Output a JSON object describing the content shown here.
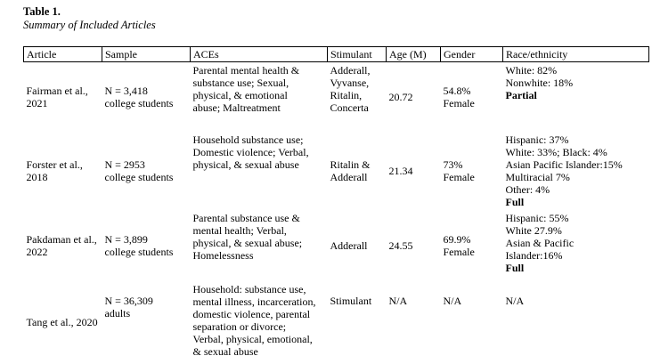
{
  "caption": {
    "title": "Table 1.",
    "subtitle": "Summary of Included Articles"
  },
  "table": {
    "headers": [
      "Article",
      "Sample",
      "ACEs",
      "Stimulant",
      "Age (M)",
      "Gender",
      "Race/ethnicity"
    ],
    "rows": [
      {
        "article": "Fairman et al.,\n2021",
        "sample": "N = 3,418\ncollege students",
        "aces": "Parental mental health &\nsubstance use; Sexual,\nphysical, & emotional\nabuse; Maltreatment",
        "stimulant": "Adderall,\nVyvanse,\nRitalin,\nConcerta",
        "age": "20.72",
        "gender": "54.8%\nFemale",
        "race_text": "White: 82%\nNonwhite: 18%",
        "race_bold": "Partial"
      },
      {
        "article": "Forster et al.,\n2018",
        "sample": "N = 2953\ncollege students",
        "aces": "Household substance use;\nDomestic violence; Verbal,\nphysical, & sexual abuse",
        "stimulant": "Ritalin &\nAdderall",
        "age": "21.34",
        "gender": "73%\nFemale",
        "race_text": "Hispanic: 37%\nWhite: 33%; Black: 4%\nAsian Pacific Islander:15%\nMultiracial 7%\nOther: 4%",
        "race_bold": "Full"
      },
      {
        "article": "Pakdaman et al.,\n2022",
        "sample": "N = 3,899\ncollege students",
        "aces": "Parental substance use &\nmental health; Verbal,\nphysical, & sexual abuse;\nHomelessness",
        "stimulant": "Adderall",
        "age": "24.55",
        "gender": "69.9%\nFemale",
        "race_text": "Hispanic: 55%\nWhite 27.9%\nAsian & Pacific\nIslander:16%",
        "race_bold": "Full"
      },
      {
        "article": "Tang et al., 2020",
        "sample": "N = 36,309\nadults",
        "aces": "Household: substance use,\nmental illness, incarceration,\ndomestic violence, parental\nseparation or divorce;\nVerbal, physical, emotional,\n& sexual abuse",
        "stimulant": "Stimulant",
        "age": "N/A",
        "gender": "N/A",
        "race_text": "N/A",
        "race_bold": ""
      }
    ]
  }
}
